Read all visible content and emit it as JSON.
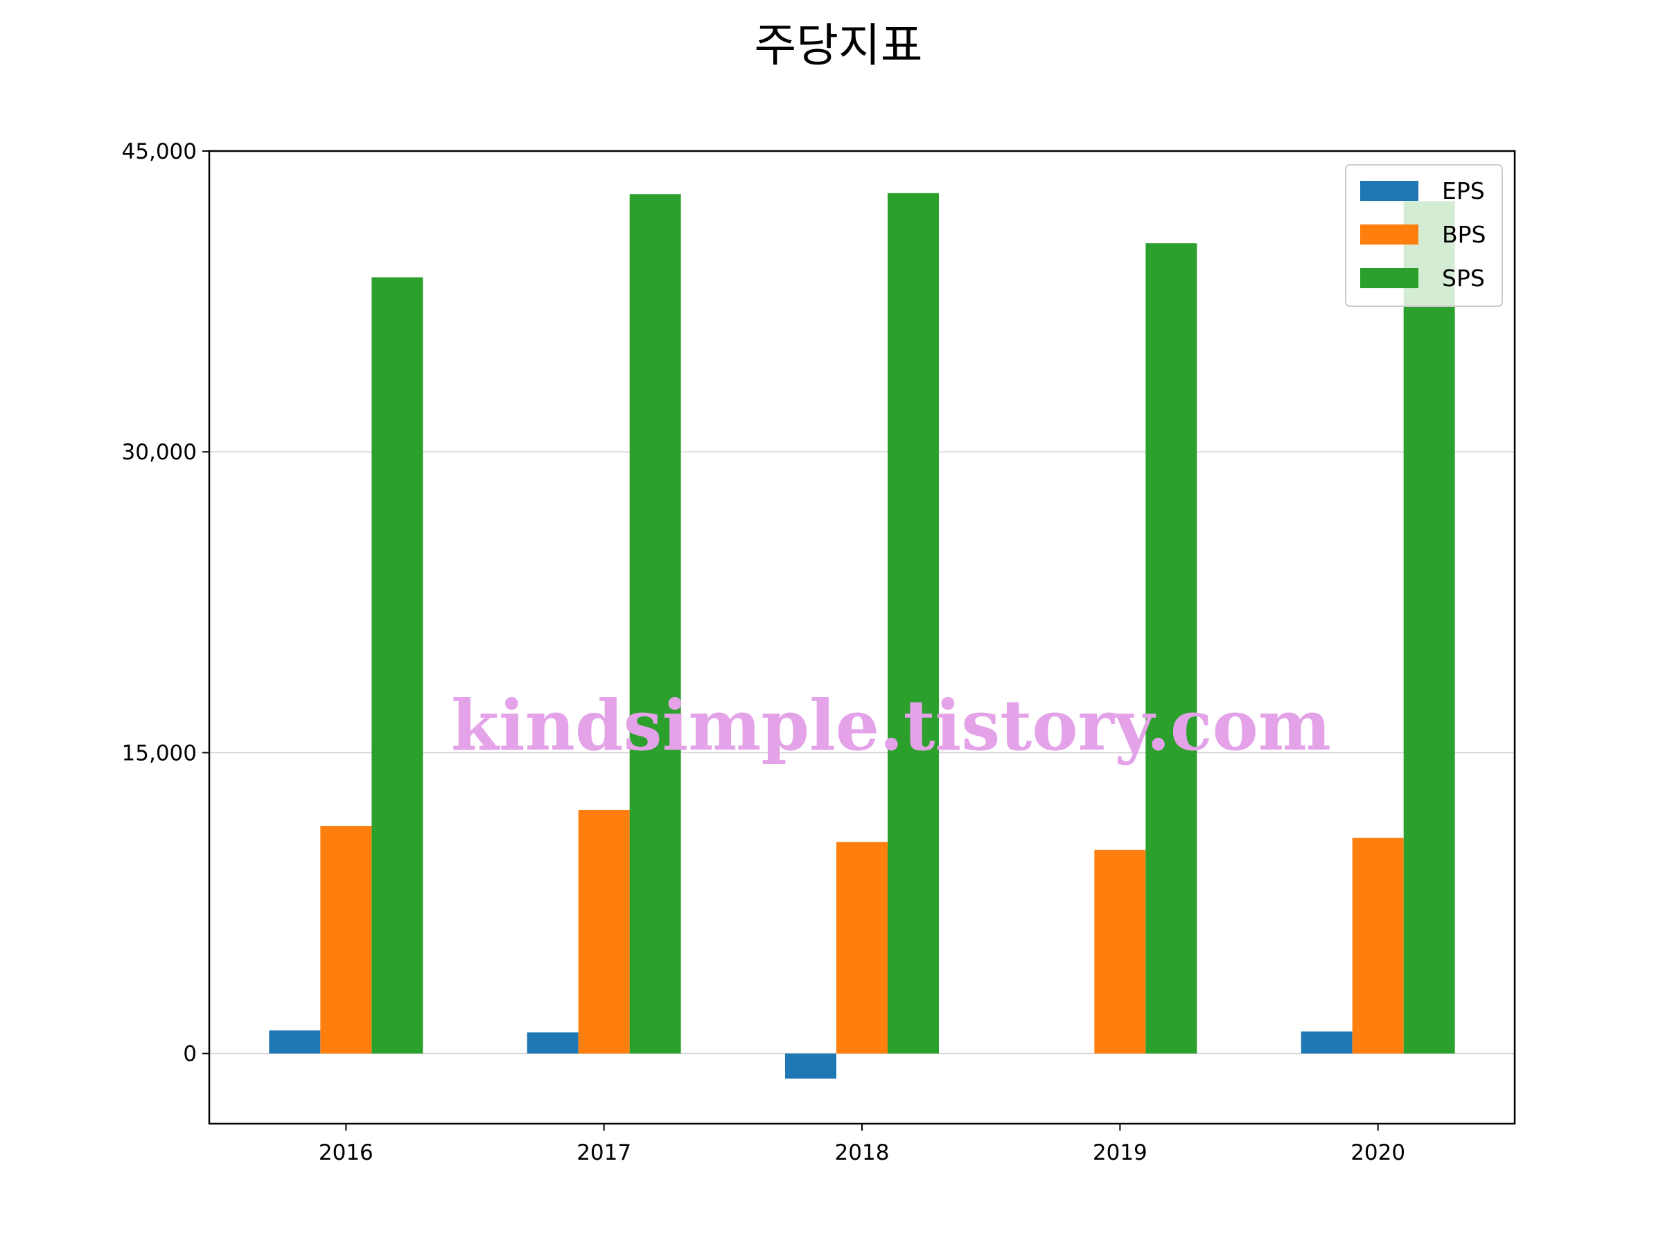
{
  "chart_data": {
    "type": "bar",
    "title": "주당지표",
    "xlabel": "",
    "ylabel": "",
    "categories": [
      "2016",
      "2017",
      "2018",
      "2019",
      "2020"
    ],
    "series": [
      {
        "name": "EPS",
        "color": "#1f77b4",
        "values": [
          1150,
          1050,
          -1250,
          0,
          1100
        ]
      },
      {
        "name": "BPS",
        "color": "#ff7f0e",
        "values": [
          11350,
          12150,
          10550,
          10150,
          10750
        ]
      },
      {
        "name": "SPS",
        "color": "#2ca02c",
        "values": [
          38700,
          42850,
          42900,
          40400,
          42500
        ]
      }
    ],
    "ylim": [
      -3500,
      45000
    ],
    "yticks": [
      0,
      15000,
      30000,
      45000
    ],
    "ytick_labels": [
      "0",
      "15,000",
      "30,000",
      "45,000"
    ],
    "grid": "y",
    "legend": "top-right"
  },
  "watermark": {
    "text": "kindsimple.tistory.com",
    "color": "#e4a2e8"
  }
}
